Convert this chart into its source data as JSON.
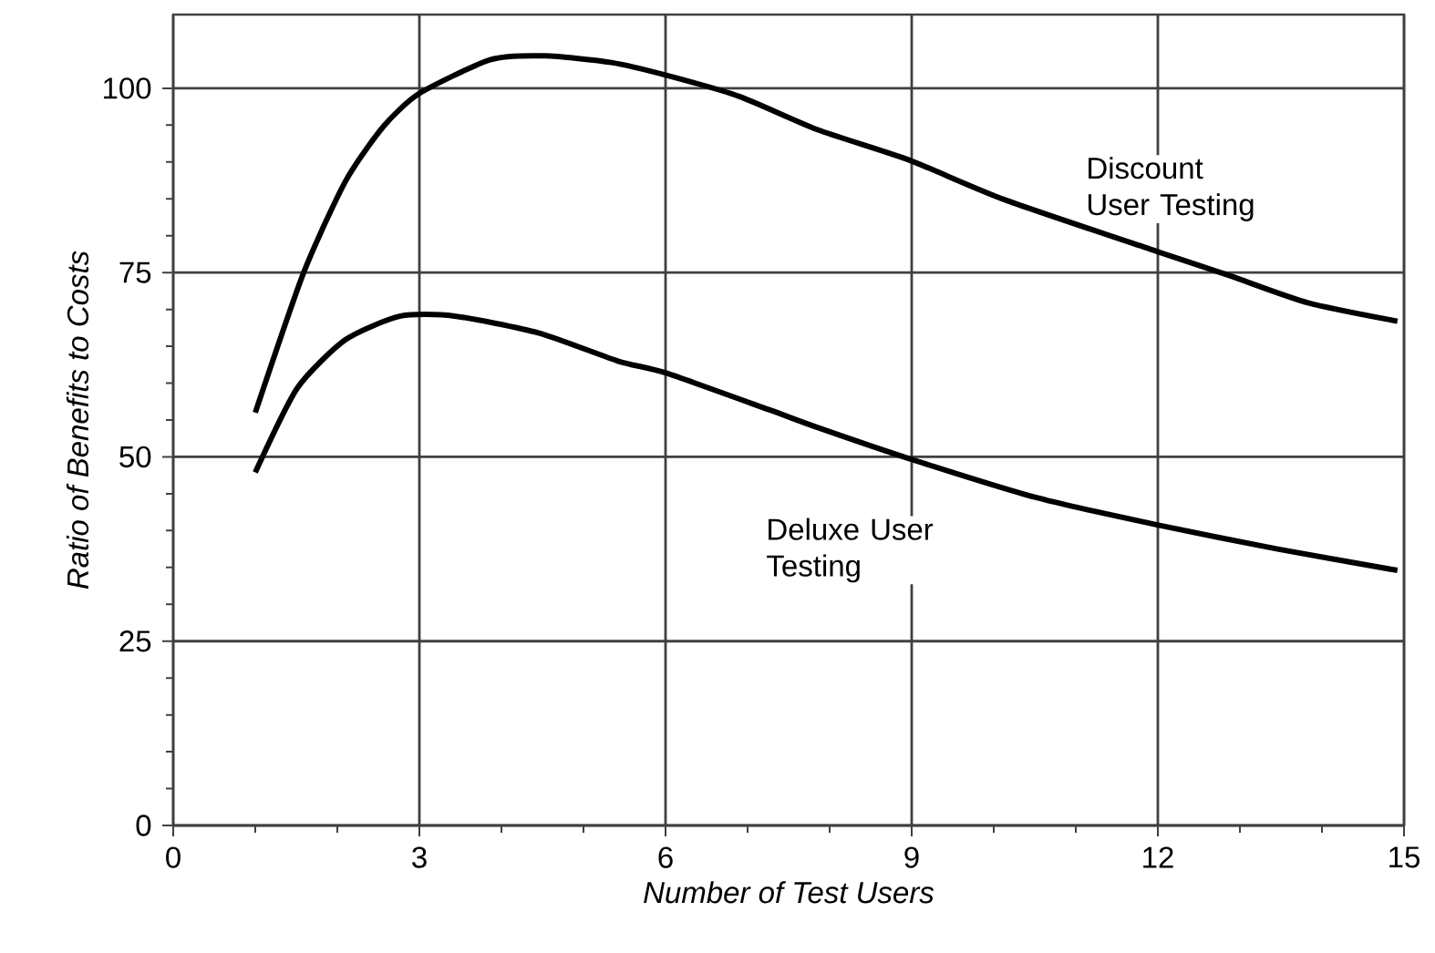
{
  "chart_data": {
    "type": "line",
    "xlabel": "Number of Test Users",
    "ylabel": "Ratio of Benefits to Costs",
    "xlim": [
      0,
      15
    ],
    "ylim": [
      0,
      110
    ],
    "xticks": [
      0,
      3,
      6,
      9,
      12,
      15
    ],
    "yticks": [
      0,
      25,
      50,
      75,
      100
    ],
    "grid": true,
    "series": [
      {
        "name": "Discount User Testing",
        "color": "#000000",
        "x": [
          1.0,
          1.59,
          2.1,
          2.56,
          3.0,
          3.87,
          4.53,
          5.34,
          6.0,
          6.9,
          7.85,
          8.96,
          10.13,
          11.98,
          12.87,
          13.83,
          14.92
        ],
        "values": [
          56,
          75,
          87.4,
          94.8,
          99.3,
          103.9,
          104.4,
          103.5,
          101.8,
          98.9,
          94.4,
          90.3,
          84.9,
          77.9,
          74.6,
          70.9,
          68.4
        ]
      },
      {
        "name": "Deluxe User Testing",
        "color": "#000000",
        "x": [
          1.0,
          1.51,
          2.1,
          2.77,
          3.43,
          4.46,
          5.42,
          6.0,
          7.26,
          7.85,
          8.96,
          10.51,
          11.98,
          13.46,
          14.92
        ],
        "values": [
          47.9,
          59.3,
          65.9,
          69.1,
          69.1,
          66.8,
          63.0,
          61.4,
          56.4,
          54.0,
          49.8,
          44.5,
          40.8,
          37.5,
          34.6
        ]
      }
    ]
  }
}
